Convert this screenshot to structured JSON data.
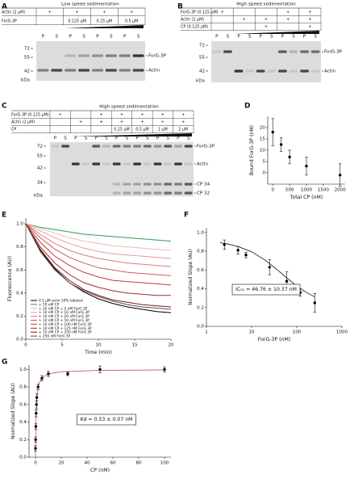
{
  "gels": [
    {
      "panel": "A",
      "title": "Low speed sedimentation",
      "rows": [
        {
          "name": "Actin (2 µM)",
          "cells": [
            "+",
            "+",
            "+",
            "+"
          ]
        },
        {
          "name": "ForG-3P",
          "cells": [
            null,
            "0.125 µM",
            "0.25 µM",
            "0.5 µM"
          ]
        }
      ],
      "lanes": [
        "P",
        "S",
        "P",
        "S",
        "P",
        "S",
        "P",
        "S"
      ],
      "mw": [
        72,
        55,
        42
      ],
      "mw_unit": "kDa",
      "band_labels": [
        "ForG-3P",
        "Actin"
      ]
    },
    {
      "panel": "B",
      "title": "High speed sedimentation",
      "rows": [
        {
          "name": "ForG-3P (0.125 µM)",
          "cells": [
            "+",
            null,
            null,
            "+",
            "+"
          ]
        },
        {
          "name": "Actin (2 µM)",
          "cells": [
            null,
            "+",
            "+",
            "+",
            "+"
          ]
        },
        {
          "name": "CP (0.125 µM)",
          "cells": [
            null,
            null,
            "+",
            null,
            "+"
          ]
        }
      ],
      "lanes": [
        "P",
        "S",
        "P",
        "S",
        "P",
        "S",
        "P",
        "S",
        "P",
        "S"
      ],
      "mw": [
        72,
        55,
        42
      ],
      "mw_unit": "kDa",
      "band_labels": [
        "ForG-3P",
        "Actin"
      ]
    },
    {
      "panel": "C",
      "title": "High speed sedimentation",
      "rows": [
        {
          "name": "ForG-3P (0.125 µM)",
          "cells": [
            "+",
            null,
            "+",
            "+",
            "+",
            "+",
            "+"
          ]
        },
        {
          "name": "Actin (2 µM)",
          "cells": [
            null,
            "+",
            "+",
            "+",
            "+",
            "+",
            "+"
          ]
        },
        {
          "name": "CP",
          "cells": [
            null,
            null,
            null,
            "0.25 µM",
            "0.5 µM",
            "1 µM",
            "2 µM"
          ]
        }
      ],
      "lanes": [
        "P",
        "S",
        "P",
        "S",
        "P",
        "S",
        "P",
        "S",
        "P",
        "S",
        "P",
        "S",
        "P",
        "S"
      ],
      "mw": [
        72,
        55,
        42,
        34
      ],
      "mw_unit": "kDa",
      "band_labels": [
        "ForG-3P",
        "Actin",
        "CP 34",
        "CP 32"
      ]
    }
  ],
  "chart_data": [
    {
      "type": "scatter",
      "panel": "D",
      "xlabel": "Total CP (nM)",
      "ylabel": "Bound ForG-3P (nM)",
      "x": [
        0,
        250,
        500,
        1000,
        2000
      ],
      "values": [
        18,
        12.5,
        7,
        3,
        -1
      ],
      "errors": [
        6,
        3,
        3,
        4,
        5
      ],
      "color": "#000000",
      "xlim": [
        -150,
        2150
      ],
      "ylim": [
        -5,
        25
      ],
      "xticks": [
        0,
        500,
        1000,
        1500,
        2000
      ],
      "yticks": [
        0,
        5,
        10,
        15,
        20
      ]
    },
    {
      "type": "line",
      "panel": "E",
      "xlabel": "Time (min)",
      "ylabel": "Fluorescence (AU)",
      "x": [
        0,
        2,
        4,
        6,
        8,
        10,
        12,
        14,
        16,
        18,
        20
      ],
      "series": [
        {
          "name": "0.1 µM actin 50% labeled",
          "color": "#000000",
          "values": [
            1,
            0.77,
            0.61,
            0.49,
            0.41,
            0.35,
            0.31,
            0.28,
            0.26,
            0.24,
            0.23
          ]
        },
        {
          "name": "+ 10 nM CP",
          "color": "#2e9e4f",
          "values": [
            1,
            0.97,
            0.95,
            0.93,
            0.91,
            0.9,
            0.89,
            0.88,
            0.87,
            0.86,
            0.85
          ]
        },
        {
          "name": "+ 10 nM CP + 5 nM ForG 3P",
          "color": "#f2b8b8",
          "values": [
            1,
            0.96,
            0.92,
            0.88,
            0.85,
            0.83,
            0.81,
            0.8,
            0.79,
            0.78,
            0.77
          ]
        },
        {
          "name": "+ 10 nM CP + 10 nM ForG 3P",
          "color": "#e99c9c",
          "values": [
            1,
            0.94,
            0.88,
            0.83,
            0.79,
            0.76,
            0.74,
            0.73,
            0.72,
            0.71,
            0.7
          ]
        },
        {
          "name": "+ 10 nM CP + 20 nM ForG 3P",
          "color": "#de7b7b",
          "values": [
            1,
            0.91,
            0.83,
            0.77,
            0.73,
            0.7,
            0.68,
            0.66,
            0.65,
            0.64,
            0.63
          ]
        },
        {
          "name": "+ 10 nM CP + 50 nM ForG 3P",
          "color": "#cf5c5c",
          "values": [
            1,
            0.88,
            0.78,
            0.71,
            0.66,
            0.62,
            0.6,
            0.58,
            0.57,
            0.56,
            0.55
          ]
        },
        {
          "name": "+ 10 nM CP + 100 nM ForG 3P",
          "color": "#bd3f3f",
          "values": [
            1,
            0.84,
            0.72,
            0.64,
            0.58,
            0.54,
            0.51,
            0.5,
            0.49,
            0.48,
            0.47
          ]
        },
        {
          "name": "+ 10 nM CP + 125 nM ForG 3P",
          "color": "#a52828",
          "values": [
            1,
            0.8,
            0.66,
            0.56,
            0.49,
            0.45,
            0.42,
            0.4,
            0.39,
            0.38,
            0.38
          ]
        },
        {
          "name": "+ 10 nM CP + 250 nM ForG 3P",
          "color": "#861818",
          "values": [
            1,
            0.78,
            0.62,
            0.51,
            0.43,
            0.38,
            0.34,
            0.32,
            0.3,
            0.29,
            0.28
          ]
        },
        {
          "name": "+ 250 nM ForG 3P",
          "color": "#555555",
          "values": [
            1,
            0.76,
            0.6,
            0.49,
            0.42,
            0.37,
            0.33,
            0.3,
            0.28,
            0.27,
            0.26
          ]
        }
      ],
      "xlim": [
        0,
        20
      ],
      "ylim": [
        0,
        1.05
      ],
      "xticks": [
        0,
        5,
        10,
        15,
        20
      ],
      "yticks": [
        {
          "value": 0,
          "label": "0.0"
        },
        0.2,
        0.4,
        0.6,
        0.8,
        {
          "value": 1,
          "label": "1.0"
        }
      ]
    },
    {
      "type": "scatter",
      "panel": "F",
      "xlabel": "ForG-3P (nM)",
      "ylabel": "Normalized Slope (AU)",
      "xscale": "log",
      "x": [
        2.5,
        5,
        7.5,
        25,
        60,
        120,
        250
      ],
      "values": [
        0.87,
        0.81,
        0.76,
        0.63,
        0.48,
        0.36,
        0.25
      ],
      "errors": [
        0.05,
        0.04,
        0.03,
        0.08,
        0.1,
        0.04,
        0.1
      ],
      "color": "#000000",
      "fit": {
        "x": [
          2,
          3,
          5,
          10,
          20,
          40,
          60,
          100,
          150,
          250
        ],
        "values": [
          0.891,
          0.877,
          0.851,
          0.794,
          0.705,
          0.589,
          0.516,
          0.43,
          0.372,
          0.314
        ],
        "color": "#000000"
      },
      "annotation": "IC₅₀ = 46.76 ± 10.37 nM",
      "xlim": [
        1,
        1000
      ],
      "ylim": [
        0,
        1.05
      ],
      "xticks": [
        1,
        10,
        100,
        1000
      ],
      "yticks": [
        {
          "value": 0,
          "label": "0.0"
        },
        0.2,
        0.4,
        0.6,
        0.8,
        {
          "value": 1,
          "label": "1.0"
        }
      ]
    },
    {
      "type": "scatter",
      "panel": "G",
      "xlabel": "CP (nM)",
      "ylabel": "Normalized Slope (AU)",
      "x": [
        0,
        0.1,
        0.25,
        0.5,
        0.75,
        1,
        2,
        5,
        10,
        25,
        50,
        100
      ],
      "values": [
        0.1,
        0.2,
        0.35,
        0.5,
        0.6,
        0.68,
        0.8,
        0.9,
        0.95,
        0.95,
        1,
        1
      ],
      "errors": [
        0.03,
        0.03,
        0.03,
        0.04,
        0.04,
        0.04,
        0.03,
        0.03,
        0.03,
        0.02,
        0.04,
        0.03
      ],
      "color": "#000000",
      "fit": {
        "x": [
          0,
          0.1,
          0.25,
          0.5,
          1,
          2,
          3,
          5,
          10,
          20,
          50,
          100
        ],
        "values": [
          0,
          0.159,
          0.321,
          0.485,
          0.654,
          0.791,
          0.85,
          0.904,
          0.95,
          0.974,
          0.99,
          0.995
        ],
        "color": "#d23c3c"
      },
      "annotation": "Kd = 0.53 ± 0.07 nM",
      "xlim": [
        -5,
        105
      ],
      "ylim": [
        0,
        1.05
      ],
      "xticks": [
        0,
        20,
        40,
        60,
        80,
        100
      ],
      "yticks": [
        {
          "value": 0,
          "label": "0.0"
        },
        0.2,
        0.4,
        0.6,
        0.8,
        {
          "value": 1,
          "label": "1.0"
        }
      ]
    }
  ]
}
